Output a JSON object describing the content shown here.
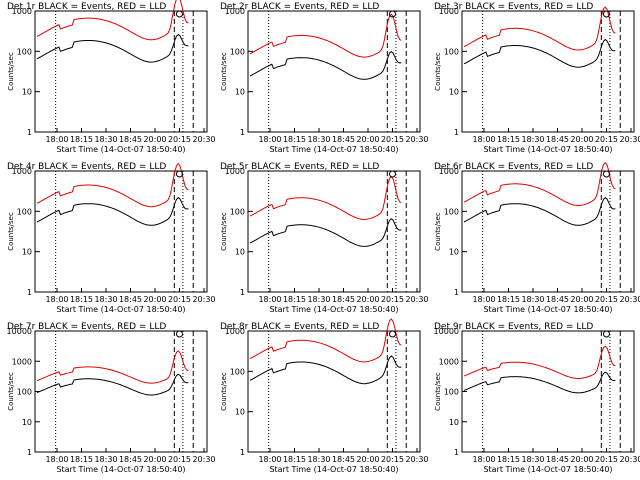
{
  "shared": {
    "xlabel": "Start Time (14-Oct-07 18:50:40)",
    "ylabel": "Counts/sec",
    "xticks": [
      "18:00",
      "18:15",
      "18:30",
      "18:45",
      "20:00",
      "20:15",
      "20:30"
    ],
    "series_names": [
      "Events",
      "LLD"
    ],
    "colors": {
      "events": "#000000",
      "lld": "#e00000"
    }
  },
  "chart_data": [
    {
      "type": "line",
      "title": "Det 1r BLACK = Events, RED = LLD",
      "yticks": [
        "1",
        "10",
        "100",
        "1000"
      ],
      "ylim": [
        1,
        1000
      ],
      "levels": [
        120,
        430
      ]
    },
    {
      "type": "line",
      "title": "Det 2r BLACK = Events, RED = LLD",
      "yticks": [
        "1",
        "10",
        "100",
        "1000"
      ],
      "ylim": [
        1,
        1000
      ],
      "levels": [
        45,
        160
      ]
    },
    {
      "type": "line",
      "title": "Det 3r BLACK = Events, RED = LLD",
      "yticks": [
        "1",
        "10",
        "100",
        "1000"
      ],
      "ylim": [
        1,
        1000
      ],
      "levels": [
        90,
        240
      ]
    },
    {
      "type": "line",
      "title": "Det 4r BLACK = Events, RED = LLD",
      "yticks": [
        "1",
        "10",
        "100",
        "1000"
      ],
      "ylim": [
        1,
        1000
      ],
      "levels": [
        100,
        290
      ]
    },
    {
      "type": "line",
      "title": "Det 5r BLACK = Events, RED = LLD",
      "yticks": [
        "1",
        "10",
        "100",
        "1000"
      ],
      "ylim": [
        1,
        1000
      ],
      "levels": [
        30,
        140
      ]
    },
    {
      "type": "line",
      "title": "Det 6r BLACK = Events, RED = LLD",
      "yticks": [
        "1",
        "10",
        "100",
        "1000"
      ],
      "ylim": [
        1,
        1000
      ],
      "levels": [
        100,
        310
      ]
    },
    {
      "type": "line",
      "title": "Det 7r BLACK = Events, RED = LLD",
      "yticks": [
        "1",
        "10",
        "100",
        "1000",
        "10000"
      ],
      "ylim": [
        1,
        10000
      ],
      "levels": [
        170,
        420
      ]
    },
    {
      "type": "line",
      "title": "Det 8r BLACK = Events, RED = LLD",
      "yticks": [
        "1",
        "10",
        "100",
        "1000"
      ],
      "ylim": [
        1,
        1000
      ],
      "levels": [
        110,
        380
      ]
    },
    {
      "type": "line",
      "title": "Det 9r BLACK = Events, RED = LLD",
      "yticks": [
        "1",
        "10",
        "100",
        "1000",
        "10000"
      ],
      "ylim": [
        1,
        10000
      ],
      "levels": [
        200,
        600
      ]
    }
  ]
}
